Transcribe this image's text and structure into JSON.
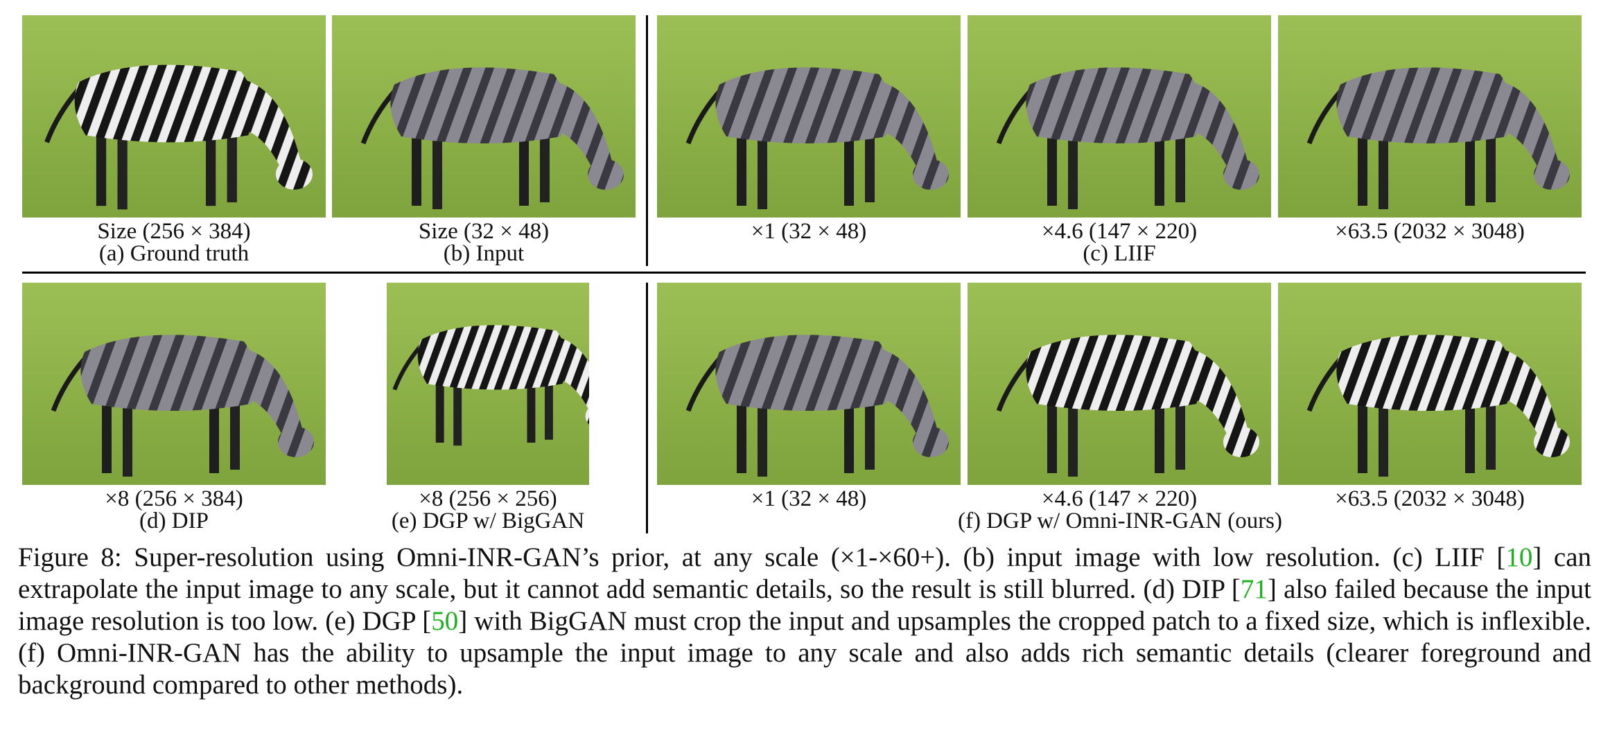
{
  "row1": {
    "panels": [
      {
        "id": "gt",
        "size_label": "Size (256 × 384)",
        "name_label": "(a) Ground truth"
      },
      {
        "id": "input",
        "size_label": "Size (32 × 48)",
        "name_label": "(b) Input"
      },
      {
        "id": "liif1",
        "size_label": "×1 (32 × 48)"
      },
      {
        "id": "liif2",
        "size_label": "×4.6 (147 × 220)"
      },
      {
        "id": "liif3",
        "size_label": "×63.5 (2032 × 3048)"
      }
    ],
    "group_label": "(c) LIIF"
  },
  "row2": {
    "panels": [
      {
        "id": "dip",
        "size_label": "×8 (256 × 384)",
        "name_label": "(d) DIP"
      },
      {
        "id": "dgp",
        "size_label": "×8 (256 × 256)",
        "name_label": "(e) DGP w/ BigGAN"
      },
      {
        "id": "omni1",
        "size_label": "×1 (32 × 48)"
      },
      {
        "id": "omni2",
        "size_label": "×4.6 (147 × 220)"
      },
      {
        "id": "omni3",
        "size_label": "×63.5 (2032 × 3048)"
      }
    ],
    "group_label": "(f) DGP w/ Omni-INR-GAN (ours)"
  },
  "caption": {
    "s1": "Figure 8: Super-resolution using Omni-INR-GAN’s prior, at any scale (×1-×60+). (b) input image with low resolution. (c) LIIF [",
    "r1": "10",
    "s2": "] can extrapolate the input image to any scale, but it cannot add semantic details, so the result is still blurred. (d) DIP [",
    "r2": "71",
    "s3": "] also failed because the input image resolution is too low. (e) DGP [",
    "r3": "50",
    "s4": "] with BigGAN must crop the input and upsamples the cropped patch to a fixed size, which is inflexible. (f) Omni-INR-GAN has the ability to upsample the input image to any scale and also adds rich semantic details (clearer foreground and background compared to other methods)."
  },
  "colors": {
    "grass": "#8fb04a",
    "grass_dark": "#6f9334",
    "zebra_dark": "#1a1a1a",
    "zebra_light": "#e8e8e8",
    "ref_link": "#1fb01f"
  }
}
